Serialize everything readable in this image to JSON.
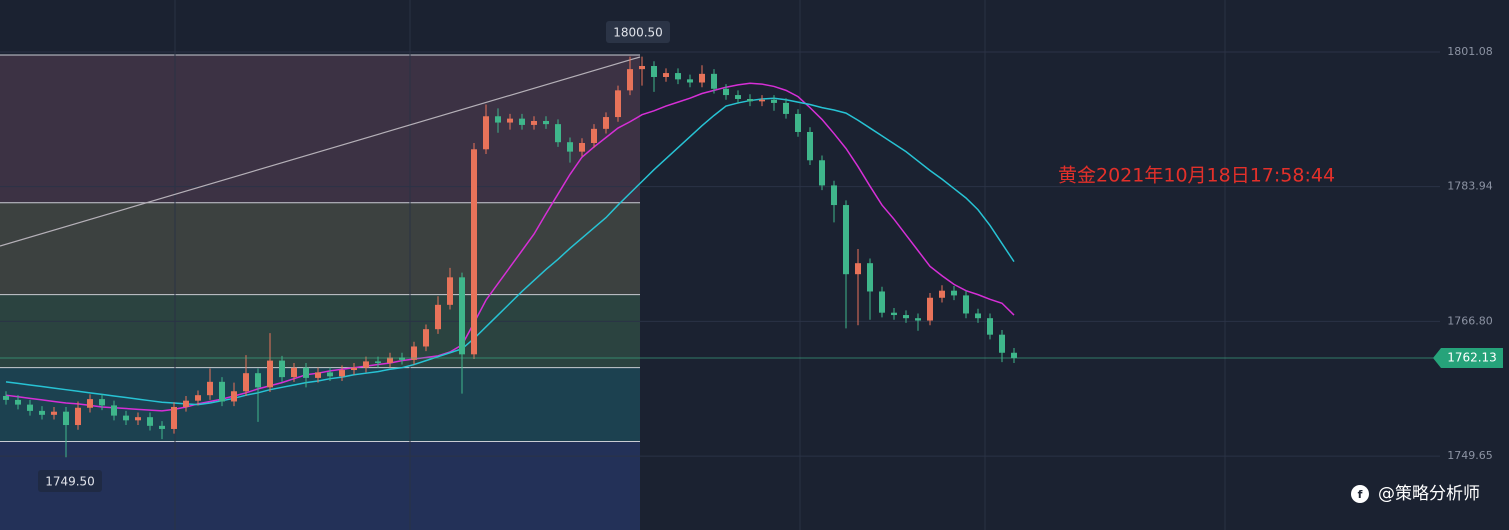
{
  "chart_data": {
    "type": "candlestick",
    "title": "黄金2021年10月18日17:58:44",
    "watermark": "@策略分析师",
    "high_label": "1800.50",
    "low_label": "1749.50",
    "last_price": {
      "value": 1762.13,
      "label": "1762.13"
    },
    "ylim": [
      1740.24,
      1807.7
    ],
    "yticks": [
      1801.08,
      1783.94,
      {
        "value": 1766.8,
        "label": "1766.80"
      },
      1749.65
    ],
    "up_color": "#e8735a",
    "down_color": "#3fb68b",
    "open": [
      1757.3,
      1756.8,
      1756.2,
      1755.4,
      1754.9,
      1755.3,
      1753.6,
      1755.8,
      1756.9,
      1756.1,
      1754.8,
      1754.2,
      1754.6,
      1753.5,
      1753.1,
      1755.9,
      1756.7,
      1757.4,
      1759.1,
      1756.6,
      1757.9,
      1760.2,
      1758.4,
      1761.8,
      1759.7,
      1760.9,
      1759.6,
      1760.3,
      1759.8,
      1760.6,
      1760.9,
      1761.7,
      1761.5,
      1762.2,
      1761.9,
      1763.6,
      1765.8,
      1768.9,
      1772.4,
      1762.6,
      1788.7,
      1792.9,
      1792.1,
      1792.6,
      1791.8,
      1792.3,
      1791.9,
      1789.6,
      1788.4,
      1789.5,
      1791.3,
      1792.8,
      1796.2,
      1798.9,
      1799.3,
      1797.9,
      1798.4,
      1797.6,
      1797.2,
      1798.3,
      1796.4,
      1795.6,
      1795.1,
      1794.8,
      1795.0,
      1794.6,
      1793.2,
      1790.9,
      1787.3,
      1784.1,
      1781.6,
      1772.8,
      1774.2,
      1770.6,
      1767.9,
      1767.6,
      1767.2,
      1766.9,
      1769.8,
      1770.7,
      1770.1,
      1767.8,
      1767.2,
      1765.1,
      1762.8
    ],
    "high": [
      1757.9,
      1757.4,
      1756.8,
      1756.0,
      1755.9,
      1755.9,
      1756.6,
      1757.5,
      1757.5,
      1756.7,
      1755.4,
      1755.2,
      1755.2,
      1754.1,
      1756.5,
      1757.3,
      1758.0,
      1760.8,
      1759.7,
      1759.0,
      1762.5,
      1760.8,
      1765.3,
      1762.4,
      1761.5,
      1761.5,
      1760.9,
      1760.9,
      1761.2,
      1761.5,
      1762.3,
      1762.3,
      1762.8,
      1762.8,
      1764.2,
      1766.4,
      1770.0,
      1773.6,
      1773.0,
      1789.5,
      1794.4,
      1793.9,
      1793.2,
      1793.2,
      1792.9,
      1792.9,
      1792.5,
      1790.2,
      1790.1,
      1791.9,
      1793.4,
      1796.8,
      1800.5,
      1800.5,
      1799.9,
      1799.0,
      1799.0,
      1798.2,
      1799.4,
      1798.9,
      1797.0,
      1796.2,
      1795.7,
      1795.6,
      1795.6,
      1795.2,
      1793.8,
      1791.5,
      1787.9,
      1784.7,
      1782.2,
      1776.0,
      1774.8,
      1771.2,
      1768.5,
      1768.2,
      1767.8,
      1770.4,
      1771.4,
      1771.3,
      1770.7,
      1768.4,
      1767.8,
      1765.7,
      1763.4
    ],
    "low": [
      1756.2,
      1755.6,
      1754.8,
      1754.3,
      1754.3,
      1749.5,
      1753.0,
      1755.2,
      1755.5,
      1754.2,
      1753.6,
      1753.6,
      1752.9,
      1751.8,
      1752.5,
      1755.3,
      1756.1,
      1756.8,
      1756.0,
      1756.0,
      1757.3,
      1754.0,
      1757.8,
      1759.1,
      1759.1,
      1758.4,
      1759.0,
      1759.2,
      1759.2,
      1760.0,
      1760.3,
      1760.9,
      1760.9,
      1761.3,
      1761.3,
      1763.0,
      1765.2,
      1768.3,
      1757.6,
      1762.0,
      1788.1,
      1790.8,
      1791.2,
      1791.2,
      1791.2,
      1791.3,
      1789.0,
      1787.0,
      1787.8,
      1788.9,
      1790.7,
      1792.2,
      1795.6,
      1796.8,
      1796.0,
      1797.3,
      1797.0,
      1796.6,
      1796.6,
      1795.8,
      1795.0,
      1794.5,
      1794.2,
      1794.2,
      1793.6,
      1792.6,
      1790.3,
      1786.7,
      1783.5,
      1779.4,
      1765.9,
      1766.3,
      1767.0,
      1767.3,
      1767.0,
      1766.6,
      1765.6,
      1766.3,
      1769.2,
      1769.5,
      1767.2,
      1766.6,
      1764.5,
      1761.6,
      1761.5
    ],
    "close": [
      1756.8,
      1756.2,
      1755.4,
      1754.9,
      1755.3,
      1753.6,
      1755.8,
      1756.9,
      1756.1,
      1754.8,
      1754.2,
      1754.6,
      1753.5,
      1753.1,
      1755.9,
      1756.7,
      1757.4,
      1759.1,
      1756.6,
      1757.9,
      1760.2,
      1758.4,
      1761.8,
      1759.7,
      1760.9,
      1759.6,
      1760.3,
      1759.8,
      1760.6,
      1760.9,
      1761.7,
      1761.5,
      1762.2,
      1761.9,
      1763.6,
      1765.8,
      1768.9,
      1772.4,
      1762.6,
      1788.7,
      1792.9,
      1792.1,
      1792.6,
      1791.8,
      1792.3,
      1791.9,
      1789.6,
      1788.4,
      1789.5,
      1791.3,
      1792.8,
      1796.2,
      1798.9,
      1799.3,
      1797.9,
      1798.4,
      1797.6,
      1797.2,
      1798.3,
      1796.4,
      1795.6,
      1795.1,
      1794.8,
      1795.0,
      1794.6,
      1793.2,
      1790.9,
      1787.3,
      1784.1,
      1781.6,
      1772.8,
      1774.2,
      1770.6,
      1767.9,
      1767.6,
      1767.2,
      1766.9,
      1769.8,
      1770.7,
      1770.1,
      1767.8,
      1767.2,
      1765.1,
      1762.8,
      1762.13
    ],
    "moving_averages": [
      {
        "color": "#d62fd6",
        "values": [
          1757.4,
          1757.2,
          1757.0,
          1756.8,
          1756.6,
          1756.4,
          1756.3,
          1756.1,
          1755.9,
          1755.8,
          1755.7,
          1755.6,
          1755.5,
          1755.4,
          1755.6,
          1755.9,
          1756.3,
          1756.6,
          1756.9,
          1757.3,
          1757.7,
          1758.2,
          1758.6,
          1759.0,
          1759.5,
          1760.0,
          1760.2,
          1760.5,
          1760.7,
          1760.9,
          1761.1,
          1761.3,
          1761.5,
          1761.8,
          1762.0,
          1762.2,
          1762.4,
          1762.9,
          1763.8,
          1766.6,
          1769.5,
          1771.6,
          1773.7,
          1775.8,
          1777.9,
          1780.5,
          1783.0,
          1785.5,
          1787.7,
          1789.0,
          1790.2,
          1791.4,
          1792.2,
          1793.1,
          1793.6,
          1794.2,
          1794.7,
          1795.2,
          1795.8,
          1796.2,
          1796.6,
          1796.9,
          1797.1,
          1797.0,
          1796.7,
          1796.2,
          1795.4,
          1794.0,
          1792.5,
          1790.7,
          1788.8,
          1786.5,
          1784.0,
          1781.6,
          1779.8,
          1777.8,
          1775.8,
          1773.8,
          1772.6,
          1771.5,
          1770.7,
          1770.2,
          1769.6,
          1769.1,
          1767.6
        ]
      },
      {
        "color": "#27c3d4",
        "values": [
          1759.1,
          1758.9,
          1758.7,
          1758.5,
          1758.3,
          1758.1,
          1757.9,
          1757.7,
          1757.5,
          1757.3,
          1757.1,
          1756.9,
          1756.7,
          1756.5,
          1756.4,
          1756.3,
          1756.2,
          1756.4,
          1756.7,
          1757.0,
          1757.4,
          1757.7,
          1758.1,
          1758.4,
          1758.7,
          1759.0,
          1759.2,
          1759.5,
          1759.7,
          1760.0,
          1760.2,
          1760.4,
          1760.7,
          1760.9,
          1761.3,
          1761.8,
          1762.3,
          1762.8,
          1763.3,
          1764.6,
          1766.1,
          1767.6,
          1769.1,
          1770.6,
          1772.0,
          1773.4,
          1774.7,
          1776.1,
          1777.4,
          1778.7,
          1780.0,
          1781.6,
          1783.1,
          1784.6,
          1786.1,
          1787.5,
          1788.9,
          1790.3,
          1791.7,
          1793.0,
          1794.2,
          1794.6,
          1794.9,
          1795.1,
          1795.2,
          1795.0,
          1794.7,
          1794.4,
          1794.0,
          1793.7,
          1793.3,
          1792.4,
          1791.4,
          1790.4,
          1789.4,
          1788.4,
          1787.2,
          1786.0,
          1784.9,
          1783.7,
          1782.5,
          1781.0,
          1779.0,
          1776.7,
          1774.4
        ]
      }
    ],
    "bands": {
      "levels": [
        1800.7,
        1781.9,
        1770.2,
        1760.9,
        1751.5
      ],
      "colors": [
        "#3c3244",
        "#3c4140",
        "#2b4340",
        "#1c4150",
        "#233158"
      ]
    }
  }
}
